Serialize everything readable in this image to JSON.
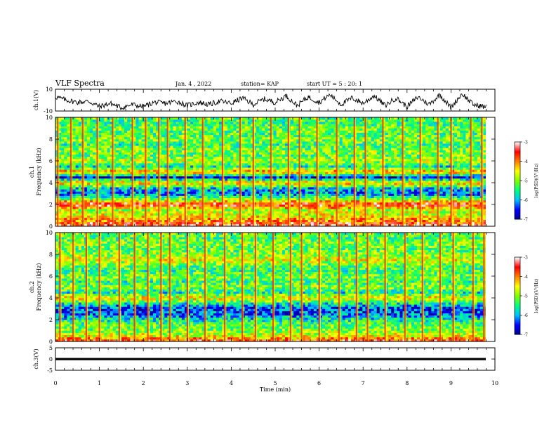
{
  "header": {
    "title": "VLF Spectra",
    "date": "Jan. 4 , 2022",
    "station": "station= KAP",
    "start": "start UT = 5 : 20: 1"
  },
  "colors": {
    "spectrogram_scale": [
      "#00008b",
      "#0000ff",
      "#00bfff",
      "#00ff7f",
      "#7fff00",
      "#ffff00",
      "#ff7f00",
      "#ff0000",
      "#ffffff"
    ],
    "waveform": "#000000"
  },
  "chart_data": [
    {
      "type": "line",
      "name": "ch1-waveform",
      "ylabel": "ch.1(V)",
      "ylim": [
        -10,
        10
      ],
      "yticks": [
        "10",
        "-10"
      ],
      "xlim": [
        0,
        10
      ],
      "x": [
        0,
        0.25,
        0.5,
        0.75,
        1,
        1.25,
        1.5,
        1.75,
        2,
        2.25,
        2.5,
        2.75,
        3,
        3.25,
        3.5,
        3.75,
        4,
        4.25,
        4.5,
        4.75,
        5,
        5.25,
        5.5,
        5.75,
        6,
        6.25,
        6.5,
        6.75,
        7,
        7.25,
        7.5,
        7.75,
        8,
        8.25,
        8.5,
        8.75,
        9,
        9.25,
        9.5,
        9.75
      ],
      "values": [
        3,
        0,
        -2,
        -1,
        -6,
        -3,
        -7,
        -4,
        -6,
        -2,
        -3,
        -1,
        -5,
        -2,
        -4,
        -1,
        -3,
        2,
        -4,
        1,
        -2,
        4,
        -5,
        3,
        -2,
        5,
        -4,
        2,
        -3,
        4,
        -5,
        2,
        -6,
        3,
        -4,
        5,
        -7,
        6,
        -4,
        -6
      ]
    },
    {
      "type": "heatmap",
      "name": "ch1-spectrogram",
      "ylabel": "ch.1 Frequency (kHz)",
      "xlim": [
        0,
        10
      ],
      "ylim": [
        0,
        10
      ],
      "yticks": [
        "0",
        "2",
        "4",
        "6",
        "8",
        "10"
      ],
      "colorbar": {
        "label": "log(PSD)(V²/Hz)",
        "ticks": [
          "-3",
          "-4",
          "-5",
          "-6",
          "-7"
        ],
        "range": [
          -7,
          -3
        ]
      },
      "band_levels_by_kHz": [
        [
          0,
          -3.2
        ],
        [
          0.5,
          -4.0
        ],
        [
          1.0,
          -4.6
        ],
        [
          1.5,
          -4.8
        ],
        [
          2.0,
          -3.4
        ],
        [
          2.5,
          -5.0
        ],
        [
          3.0,
          -6.2
        ],
        [
          3.5,
          -5.8
        ],
        [
          4.0,
          -4.2
        ],
        [
          4.5,
          -6.6
        ],
        [
          5.0,
          -4.0
        ],
        [
          5.5,
          -5.6
        ],
        [
          6.0,
          -4.8
        ],
        [
          6.5,
          -5.2
        ],
        [
          7.0,
          -5.0
        ],
        [
          7.5,
          -5.4
        ],
        [
          8.0,
          -5.0
        ],
        [
          8.5,
          -5.3
        ],
        [
          9.0,
          -5.1
        ],
        [
          9.5,
          -5.4
        ],
        [
          10.0,
          -5.2
        ]
      ],
      "impulse_times_min": [
        0.05,
        0.35,
        0.62,
        0.95,
        1.3,
        1.75,
        2.05,
        2.35,
        2.55,
        2.95,
        3.35,
        3.8,
        4.2,
        4.5,
        4.9,
        5.3,
        5.55,
        5.95,
        6.4,
        6.8,
        7.05,
        7.45,
        7.9,
        8.3,
        8.7,
        9.0,
        9.45,
        9.7
      ]
    },
    {
      "type": "heatmap",
      "name": "ch2-spectrogram",
      "ylabel": "ch.2 Frequency (kHz)",
      "xlim": [
        0,
        10
      ],
      "ylim": [
        0,
        10
      ],
      "yticks": [
        "0",
        "2",
        "4",
        "6",
        "8",
        "10"
      ],
      "colorbar": {
        "label": "log(PSD)(V²/Hz)",
        "ticks": [
          "-3",
          "-4",
          "-5",
          "-6",
          "-7"
        ],
        "range": [
          -7,
          -3
        ]
      },
      "band_levels_by_kHz": [
        [
          0,
          -3.4
        ],
        [
          0.5,
          -4.6
        ],
        [
          1.0,
          -5.0
        ],
        [
          1.5,
          -5.2
        ],
        [
          2.0,
          -5.6
        ],
        [
          2.5,
          -6.2
        ],
        [
          3.0,
          -6.4
        ],
        [
          3.5,
          -5.6
        ],
        [
          4.0,
          -4.4
        ],
        [
          4.5,
          -5.6
        ],
        [
          5.0,
          -5.0
        ],
        [
          5.5,
          -5.4
        ],
        [
          6.0,
          -5.0
        ],
        [
          6.5,
          -5.4
        ],
        [
          7.0,
          -5.2
        ],
        [
          7.5,
          -4.6
        ],
        [
          8.0,
          -5.0
        ],
        [
          8.5,
          -5.2
        ],
        [
          9.0,
          -5.0
        ],
        [
          9.5,
          -5.3
        ],
        [
          10.0,
          -5.1
        ]
      ],
      "impulse_times_min": [
        0.1,
        0.4,
        0.7,
        1.0,
        1.45,
        1.8,
        2.1,
        2.4,
        2.6,
        3.0,
        3.4,
        3.85,
        4.25,
        4.55,
        4.95,
        5.35,
        5.6,
        6.0,
        6.45,
        6.85,
        7.1,
        7.5,
        7.95,
        8.35,
        8.75,
        9.05,
        9.5,
        9.75
      ]
    },
    {
      "type": "line",
      "name": "ch3-waveform",
      "ylabel": "ch.3(V)",
      "ylim": [
        -5,
        5
      ],
      "yticks": [
        "5",
        "0",
        "-5"
      ],
      "xlim": [
        0,
        10
      ],
      "xlabel": "Time (min)",
      "xticks": [
        "0",
        "1",
        "2",
        "3",
        "4",
        "5",
        "6",
        "7",
        "8",
        "9",
        "10"
      ],
      "level": 0,
      "band_halfwidth": 0.5
    }
  ]
}
